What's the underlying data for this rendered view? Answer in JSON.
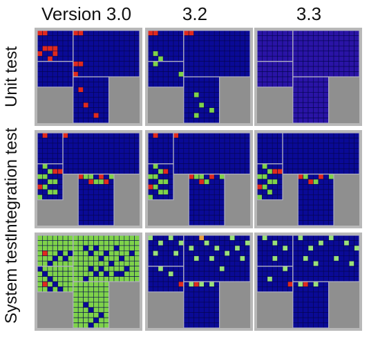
{
  "columns": [
    {
      "label": "Version 3.0"
    },
    {
      "label": "3.2"
    },
    {
      "label": "3.3"
    }
  ],
  "rows": [
    {
      "label": "Unit test"
    },
    {
      "label": "Integration test"
    },
    {
      "label": "System test"
    }
  ],
  "colors": {
    "background": "#ffffff",
    "panel_border": "#b8b8b8",
    "empty_area": "#8f8f8f",
    "block_dark_blue": "#0a0a96",
    "block_purple_blue": "#2a14a6",
    "grid_line": "#050550",
    "region_outline": "#b0b0c0",
    "cell_red": "#e02a1e",
    "cell_green": "#7fd34a",
    "cell_light_green": "#9be07a",
    "cell_orange": "#e8a040"
  }
}
